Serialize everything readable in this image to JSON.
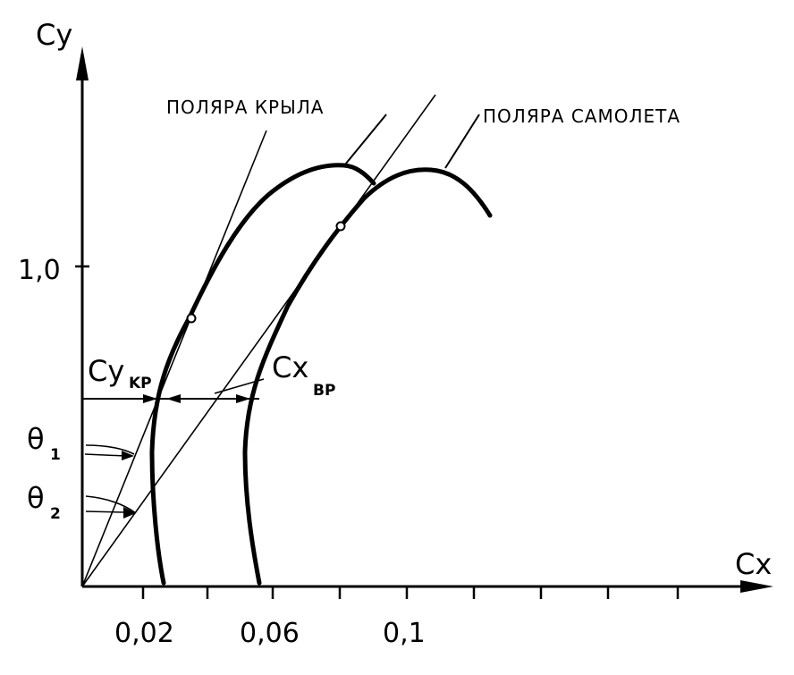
{
  "axes": {
    "y_label": "Cy",
    "x_label": "Cx",
    "y_tick": "1,0",
    "x_ticks": [
      "0,02",
      "0,06",
      "0,1"
    ]
  },
  "captions": {
    "wing_polar": "ПОЛЯРА КРЫЛА",
    "plane_polar": "ПОЛЯРА САМОЛЕТА"
  },
  "annotations": {
    "cy_kr_main": "Cy",
    "cy_kr_sub": "KP",
    "cx_vr_main": "Cx",
    "cx_vr_sub": "BP",
    "theta1_main": "θ",
    "theta1_sub": "1",
    "theta2_main": "θ",
    "theta2_sub": "2"
  }
}
